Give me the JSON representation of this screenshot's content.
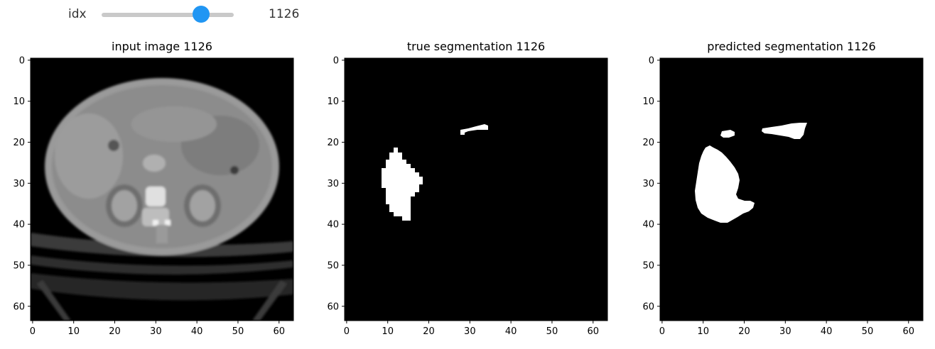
{
  "slider": {
    "label": "idx",
    "min": 0,
    "max": 1500,
    "value": 1126,
    "readout": "1126",
    "accent_color": "#2196f3"
  },
  "panels": [
    {
      "title": "input image 1126",
      "image": "ct-scan-slice",
      "x_ticks": [
        "0",
        "10",
        "20",
        "30",
        "40",
        "50",
        "60"
      ],
      "y_ticks": [
        "0",
        "10",
        "20",
        "30",
        "40",
        "50",
        "60"
      ]
    },
    {
      "title": "true segmentation 1126",
      "image": "segmentation-mask-true",
      "x_ticks": [
        "0",
        "10",
        "20",
        "30",
        "40",
        "50",
        "60"
      ],
      "y_ticks": [
        "0",
        "10",
        "20",
        "30",
        "40",
        "50",
        "60"
      ]
    },
    {
      "title": "predicted segmentation 1126",
      "image": "segmentation-mask-predicted",
      "x_ticks": [
        "0",
        "10",
        "20",
        "30",
        "40",
        "50",
        "60"
      ],
      "y_ticks": [
        "0",
        "10",
        "20",
        "30",
        "40",
        "50",
        "60"
      ]
    }
  ]
}
